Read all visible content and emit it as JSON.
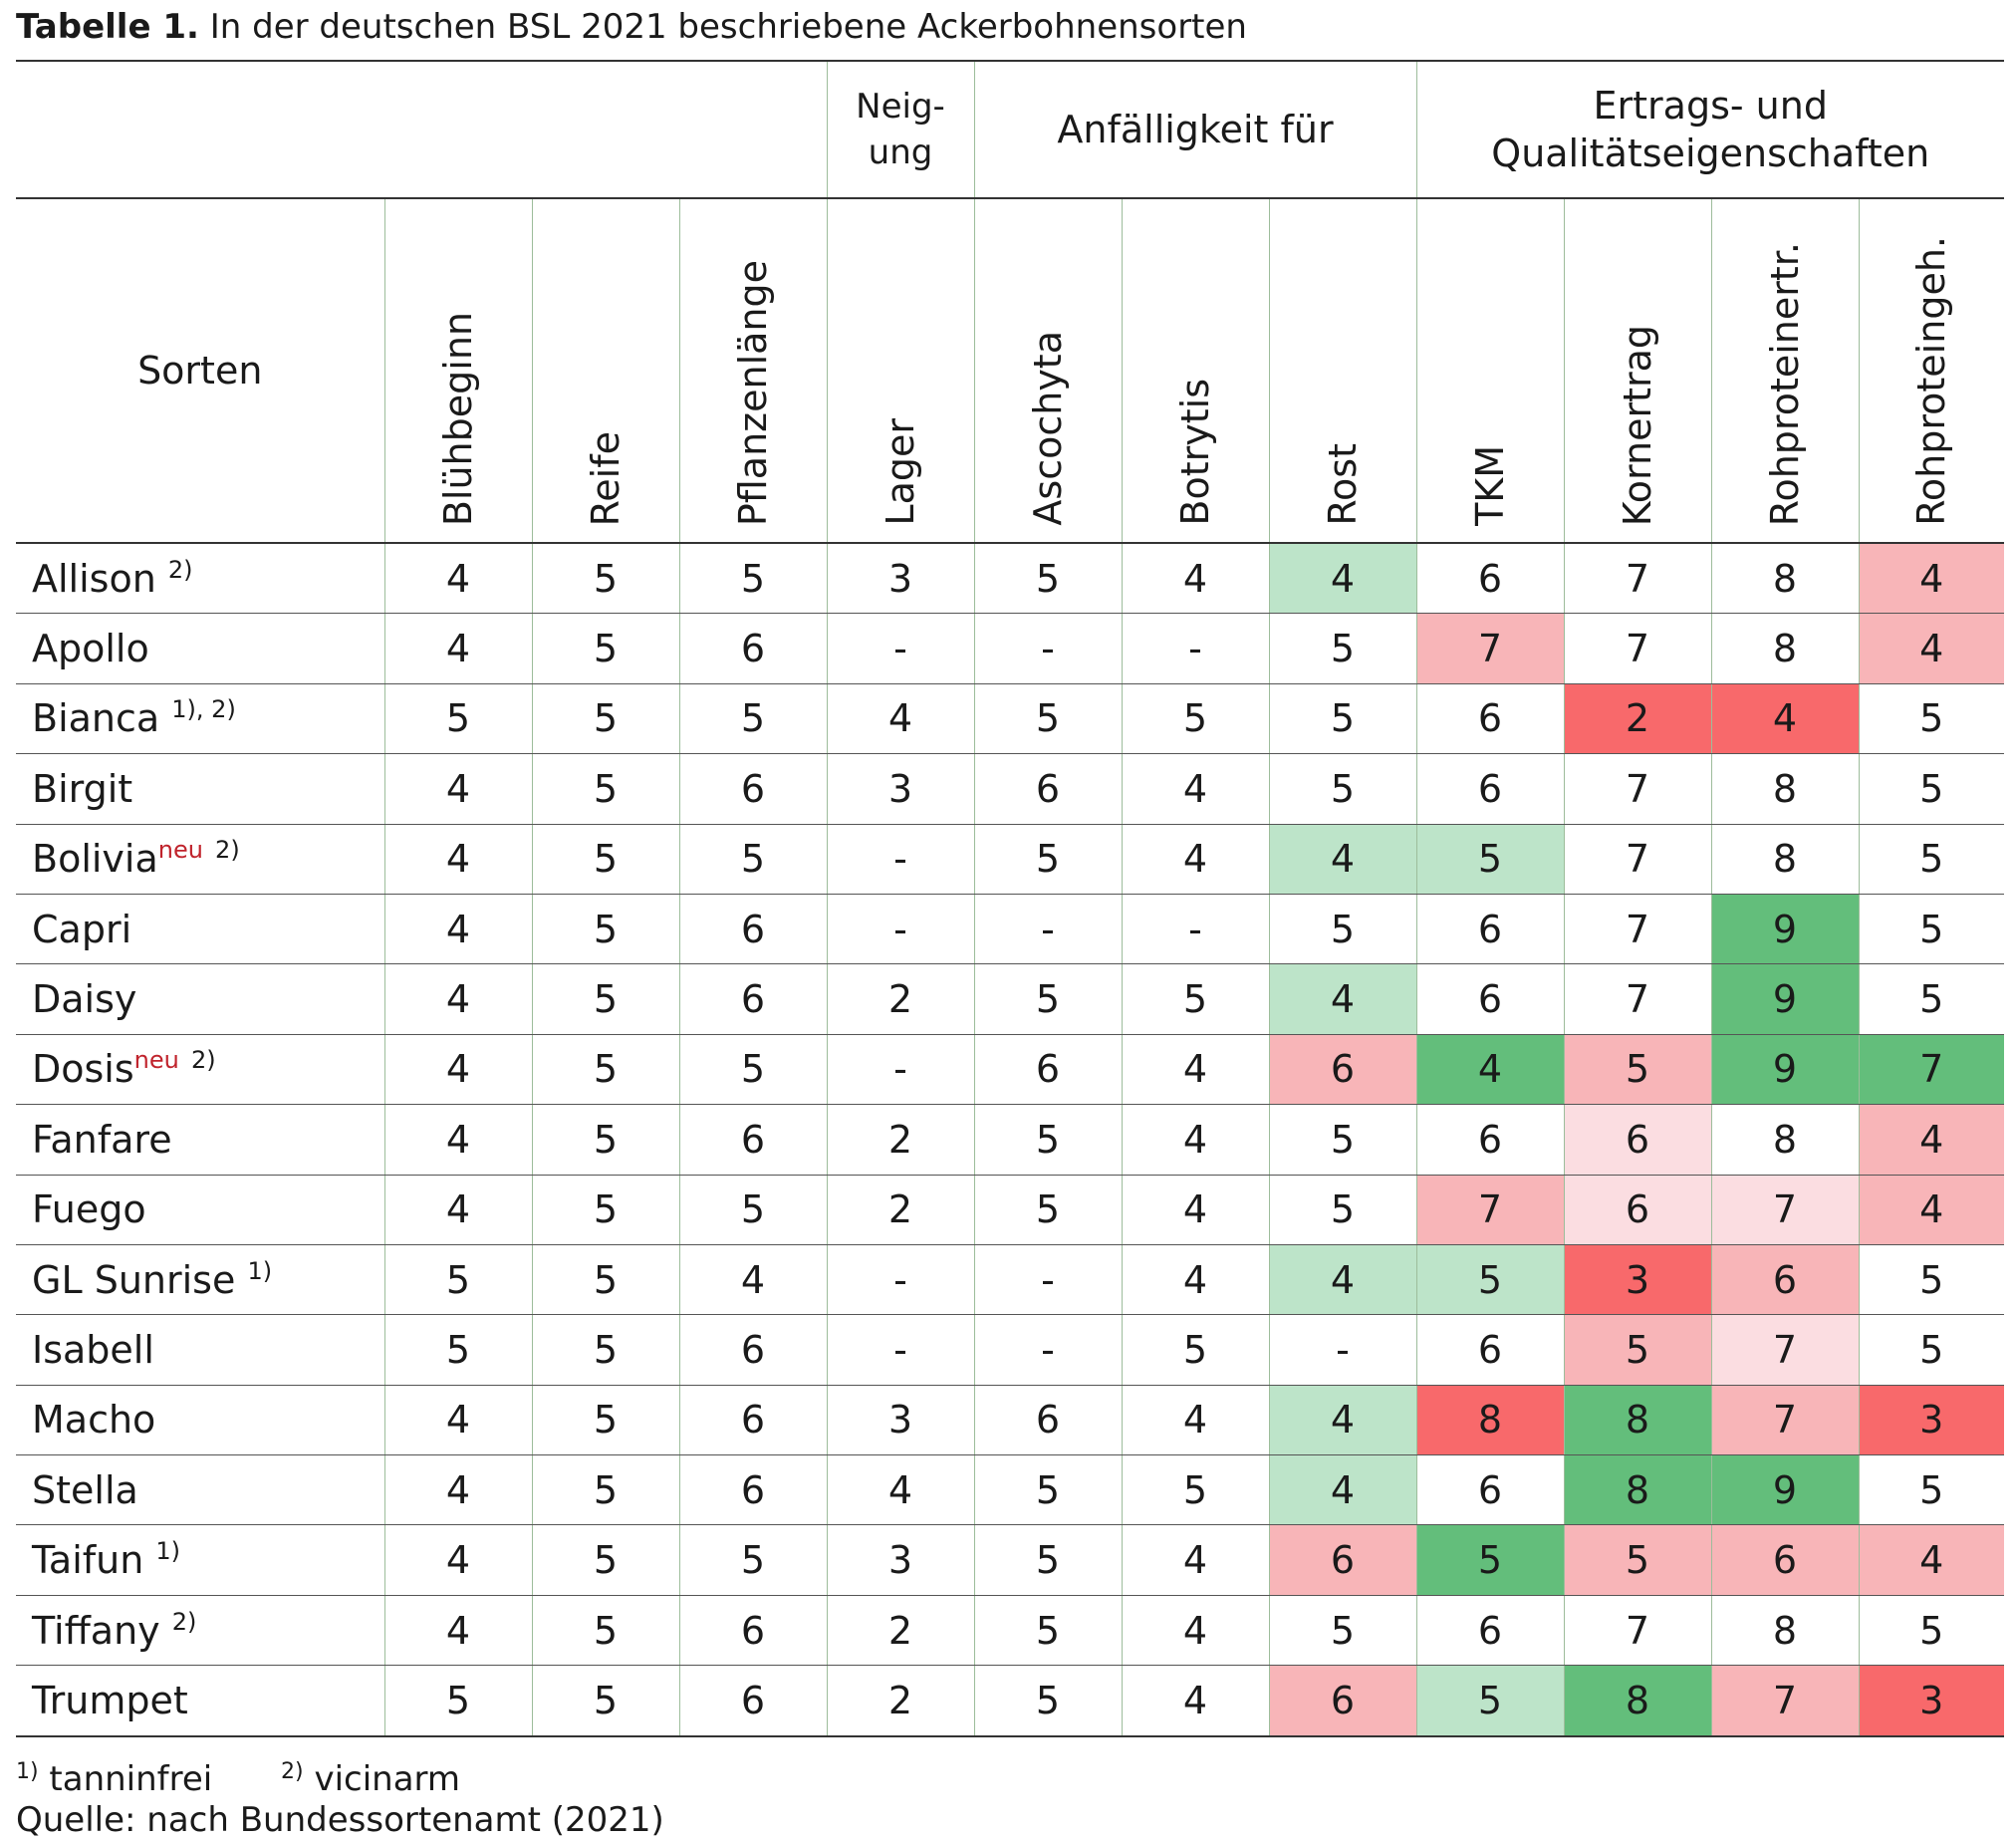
{
  "title": {
    "bold": "Tabelle 1.",
    "text": "In der deutschen BSL 2021 beschriebene Ackerbohnensorten"
  },
  "group_headers": {
    "neigung_line1": "Neig-",
    "neigung_line2": "ung",
    "anfaelligkeit": "Anfälligkeit für",
    "ertrag_line1": "Ertrags- und",
    "ertrag_line2": "Qualitätseigenschaften"
  },
  "column_headers": {
    "sorten": "Sorten",
    "cols": [
      "Blühbeginn",
      "Reife",
      "Pflanzenlänge",
      "Lager",
      "Ascochyta",
      "Botrytis",
      "Rost",
      "TKM",
      "Kornertrag",
      "Rohproteinertr.",
      "Rohproteingeh."
    ]
  },
  "rows": [
    {
      "name": "Allison",
      "sup": "2)",
      "neu": "",
      "values": [
        "4",
        "5",
        "5",
        "3",
        "5",
        "4",
        "4",
        "6",
        "7",
        "8",
        "4"
      ]
    },
    {
      "name": "Apollo",
      "sup": "",
      "neu": "",
      "values": [
        "4",
        "5",
        "6",
        "-",
        "-",
        "-",
        "5",
        "7",
        "7",
        "8",
        "4"
      ]
    },
    {
      "name": "Bianca",
      "sup": "1), 2)",
      "neu": "",
      "values": [
        "5",
        "5",
        "5",
        "4",
        "5",
        "5",
        "5",
        "6",
        "2",
        "4",
        "5"
      ]
    },
    {
      "name": "Birgit",
      "sup": "",
      "neu": "",
      "values": [
        "4",
        "5",
        "6",
        "3",
        "6",
        "4",
        "5",
        "6",
        "7",
        "8",
        "5"
      ]
    },
    {
      "name": "Bolivia",
      "sup": "2)",
      "neu": "neu",
      "values": [
        "4",
        "5",
        "5",
        "-",
        "5",
        "4",
        "4",
        "5",
        "7",
        "8",
        "5"
      ]
    },
    {
      "name": "Capri",
      "sup": "",
      "neu": "",
      "values": [
        "4",
        "5",
        "6",
        "-",
        "-",
        "-",
        "5",
        "6",
        "7",
        "9",
        "5"
      ]
    },
    {
      "name": "Daisy",
      "sup": "",
      "neu": "",
      "values": [
        "4",
        "5",
        "6",
        "2",
        "5",
        "5",
        "4",
        "6",
        "7",
        "9",
        "5"
      ]
    },
    {
      "name": "Dosis",
      "sup": "2)",
      "neu": "neu",
      "values": [
        "4",
        "5",
        "5",
        "-",
        "6",
        "4",
        "6",
        "4",
        "5",
        "9",
        "7"
      ]
    },
    {
      "name": "Fanfare",
      "sup": "",
      "neu": "",
      "values": [
        "4",
        "5",
        "6",
        "2",
        "5",
        "4",
        "5",
        "6",
        "6",
        "8",
        "4"
      ]
    },
    {
      "name": "Fuego",
      "sup": "",
      "neu": "",
      "values": [
        "4",
        "5",
        "5",
        "2",
        "5",
        "4",
        "5",
        "7",
        "6",
        "7",
        "4"
      ]
    },
    {
      "name": "GL Sunrise",
      "sup": "1)",
      "neu": "",
      "values": [
        "5",
        "5",
        "4",
        "-",
        "-",
        "4",
        "4",
        "5",
        "3",
        "6",
        "5"
      ]
    },
    {
      "name": "Isabell",
      "sup": "",
      "neu": "",
      "values": [
        "5",
        "5",
        "6",
        "-",
        "-",
        "5",
        "-",
        "6",
        "5",
        "7",
        "5"
      ]
    },
    {
      "name": "Macho",
      "sup": "",
      "neu": "",
      "values": [
        "4",
        "5",
        "6",
        "3",
        "6",
        "4",
        "4",
        "8",
        "8",
        "7",
        "3"
      ]
    },
    {
      "name": "Stella",
      "sup": "",
      "neu": "",
      "values": [
        "4",
        "5",
        "6",
        "4",
        "5",
        "5",
        "4",
        "6",
        "8",
        "9",
        "5"
      ]
    },
    {
      "name": "Taifun",
      "sup": "1)",
      "neu": "",
      "values": [
        "4",
        "5",
        "5",
        "3",
        "5",
        "4",
        "6",
        "5",
        "5",
        "6",
        "4"
      ]
    },
    {
      "name": "Tiffany",
      "sup": "2)",
      "neu": "",
      "values": [
        "4",
        "5",
        "6",
        "2",
        "5",
        "4",
        "5",
        "6",
        "7",
        "8",
        "5"
      ]
    },
    {
      "name": "Trumpet",
      "sup": "",
      "neu": "",
      "values": [
        "5",
        "5",
        "6",
        "2",
        "5",
        "4",
        "6",
        "5",
        "8",
        "7",
        "3"
      ]
    }
  ],
  "cell_colors": {
    "Allison": {
      "6": "#bde4c9",
      "10": "#f8b5b8"
    },
    "Apollo": {
      "7": "#f8b5b8",
      "10": "#f8b5b8"
    },
    "Bianca": {
      "8": "#f8696b",
      "9": "#f8696b"
    },
    "Bolivia": {
      "6": "#bde4c9",
      "7": "#bde4c9"
    },
    "Capri": {
      "9": "#63be7b"
    },
    "Daisy": {
      "6": "#bde4c9",
      "9": "#63be7b"
    },
    "Dosis": {
      "6": "#f8b5b8",
      "7": "#63be7b",
      "8": "#f8b5b8",
      "9": "#63be7b",
      "10": "#63be7b"
    },
    "Fanfare": {
      "8": "#fbdde1",
      "10": "#f8b5b8"
    },
    "Fuego": {
      "7": "#f8b5b8",
      "8": "#fbdde1",
      "9": "#fbdde1",
      "10": "#f8b5b8"
    },
    "GL Sunrise": {
      "6": "#bde4c9",
      "7": "#bde4c9",
      "8": "#f8696b",
      "9": "#f8b5b8"
    },
    "Isabell": {
      "8": "#f8b5b8",
      "9": "#fbdde1"
    },
    "Macho": {
      "6": "#bde4c9",
      "7": "#f8696b",
      "8": "#63be7b",
      "9": "#f8b5b8",
      "10": "#f8696b"
    },
    "Stella": {
      "6": "#bde4c9",
      "8": "#63be7b",
      "9": "#63be7b"
    },
    "Taifun": {
      "6": "#f8b5b8",
      "7": "#63be7b",
      "8": "#f8b5b8",
      "9": "#f8b5b8",
      "10": "#f8b5b8"
    },
    "Tiffany": {},
    "Trumpet": {
      "6": "#f8b5b8",
      "7": "#bde4c9",
      "8": "#63be7b",
      "9": "#f8b5b8",
      "10": "#f8696b"
    }
  },
  "footnotes": {
    "n1_mark": "1)",
    "n1_text": "tanninfrei",
    "n2_mark": "2)",
    "n2_text": "vicinarm"
  },
  "source": "Quelle: nach Bundessortenamt (2021)"
}
